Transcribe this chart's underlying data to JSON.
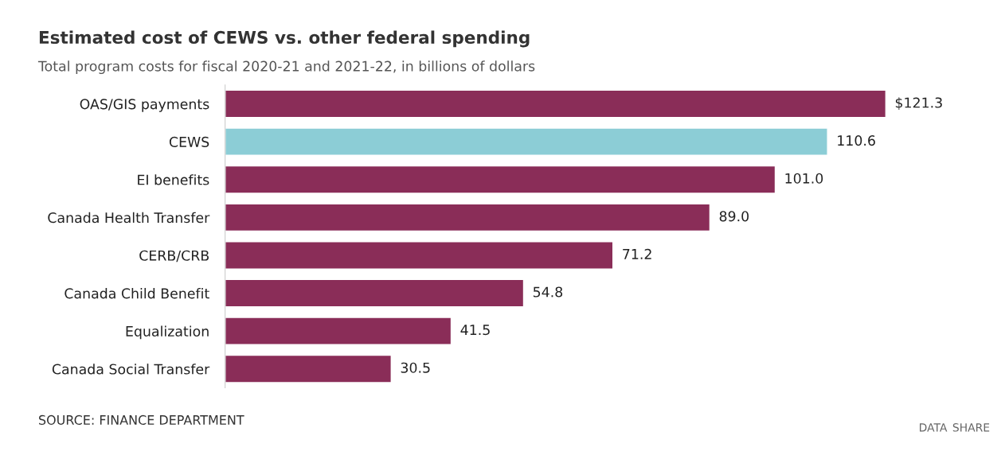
{
  "chart_data": {
    "type": "bar",
    "orientation": "horizontal",
    "title": "Estimated cost of CEWS vs. other federal spending",
    "subtitle": "Total program costs for fiscal 2020-21 and 2021-22, in billions of dollars",
    "categories": [
      "OAS/GIS payments",
      "CEWS",
      "EI benefits",
      "Canada Health Transfer",
      "CERB/CRB",
      "Canada Child Benefit",
      "Equalization",
      "Canada Social Transfer"
    ],
    "values": [
      121.3,
      110.6,
      101.0,
      89.0,
      71.2,
      54.8,
      41.5,
      30.5
    ],
    "value_labels": [
      "$121.3",
      "110.6",
      "101.0",
      "89.0",
      "71.2",
      "54.8",
      "41.5",
      "30.5"
    ],
    "colors": [
      "#8a2d58",
      "#8ccdd6",
      "#8a2d58",
      "#8a2d58",
      "#8a2d58",
      "#8a2d58",
      "#8a2d58",
      "#8a2d58"
    ],
    "annotations": [
      "SOURCE: FINANCE DEPARTMENT",
      "DATA",
      "SHARE"
    ],
    "grid": false,
    "legend": false
  }
}
